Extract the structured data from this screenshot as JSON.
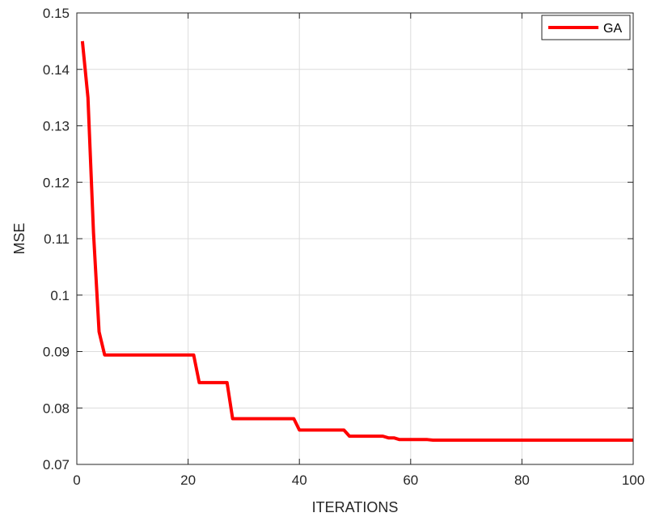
{
  "chart_data": {
    "type": "line",
    "xlabel": "ITERATIONS",
    "ylabel": "MSE",
    "xlim": [
      0,
      100
    ],
    "ylim": [
      0.07,
      0.15
    ],
    "xticks": [
      "0",
      "20",
      "40",
      "60",
      "80",
      "100"
    ],
    "yticks": [
      "0.07",
      "0.08",
      "0.09",
      "0.1",
      "0.11",
      "0.12",
      "0.13",
      "0.14",
      "0.15"
    ],
    "grid": true,
    "legend_position": "top-right",
    "series": [
      {
        "name": "GA",
        "color": "#ff0000",
        "x": [
          1,
          2,
          3,
          4,
          5,
          6,
          21,
          22,
          27,
          28,
          39,
          40,
          48,
          49,
          55,
          56,
          57,
          58,
          63,
          64,
          100
        ],
        "y": [
          0.145,
          0.135,
          0.111,
          0.0935,
          0.0894,
          0.0894,
          0.0894,
          0.0845,
          0.0845,
          0.0781,
          0.0781,
          0.0761,
          0.0761,
          0.075,
          0.075,
          0.0747,
          0.0747,
          0.0744,
          0.0744,
          0.0743,
          0.0743
        ]
      }
    ]
  }
}
